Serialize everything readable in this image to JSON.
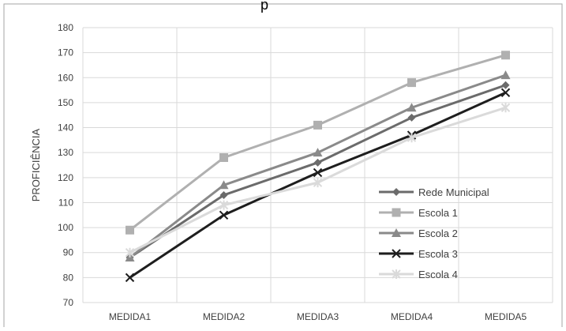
{
  "chart_data": {
    "type": "line",
    "title": "",
    "xlabel": "",
    "ylabel": "PROFICIÊNCIA",
    "categories": [
      "MEDIDA1",
      "MEDIDA2",
      "MEDIDA3",
      "MEDIDA4",
      "MEDIDA5"
    ],
    "yticks": [
      "70",
      "80",
      "90",
      "100",
      "110",
      "120",
      "130",
      "140",
      "150",
      "160",
      "170",
      "180"
    ],
    "ylim": [
      70,
      180
    ],
    "grid": true,
    "legend_position": "right",
    "series": [
      {
        "name": "Rede Municipal",
        "values": [
          88,
          113,
          126,
          144,
          157
        ],
        "color": "#6b6b6b",
        "marker": "diamond"
      },
      {
        "name": "Escola 1",
        "values": [
          99,
          128,
          141,
          158,
          169
        ],
        "color": "#b0b0b0",
        "marker": "square"
      },
      {
        "name": "Escola 2",
        "values": [
          88,
          117,
          130,
          148,
          161
        ],
        "color": "#8a8a8a",
        "marker": "triangle"
      },
      {
        "name": "Escola 3",
        "values": [
          80,
          105,
          122,
          137,
          154
        ],
        "color": "#1e1e1e",
        "marker": "x"
      },
      {
        "name": "Escola 4",
        "values": [
          90,
          109,
          118,
          136,
          148
        ],
        "color": "#dadada",
        "marker": "star"
      }
    ]
  },
  "top_text": "p"
}
